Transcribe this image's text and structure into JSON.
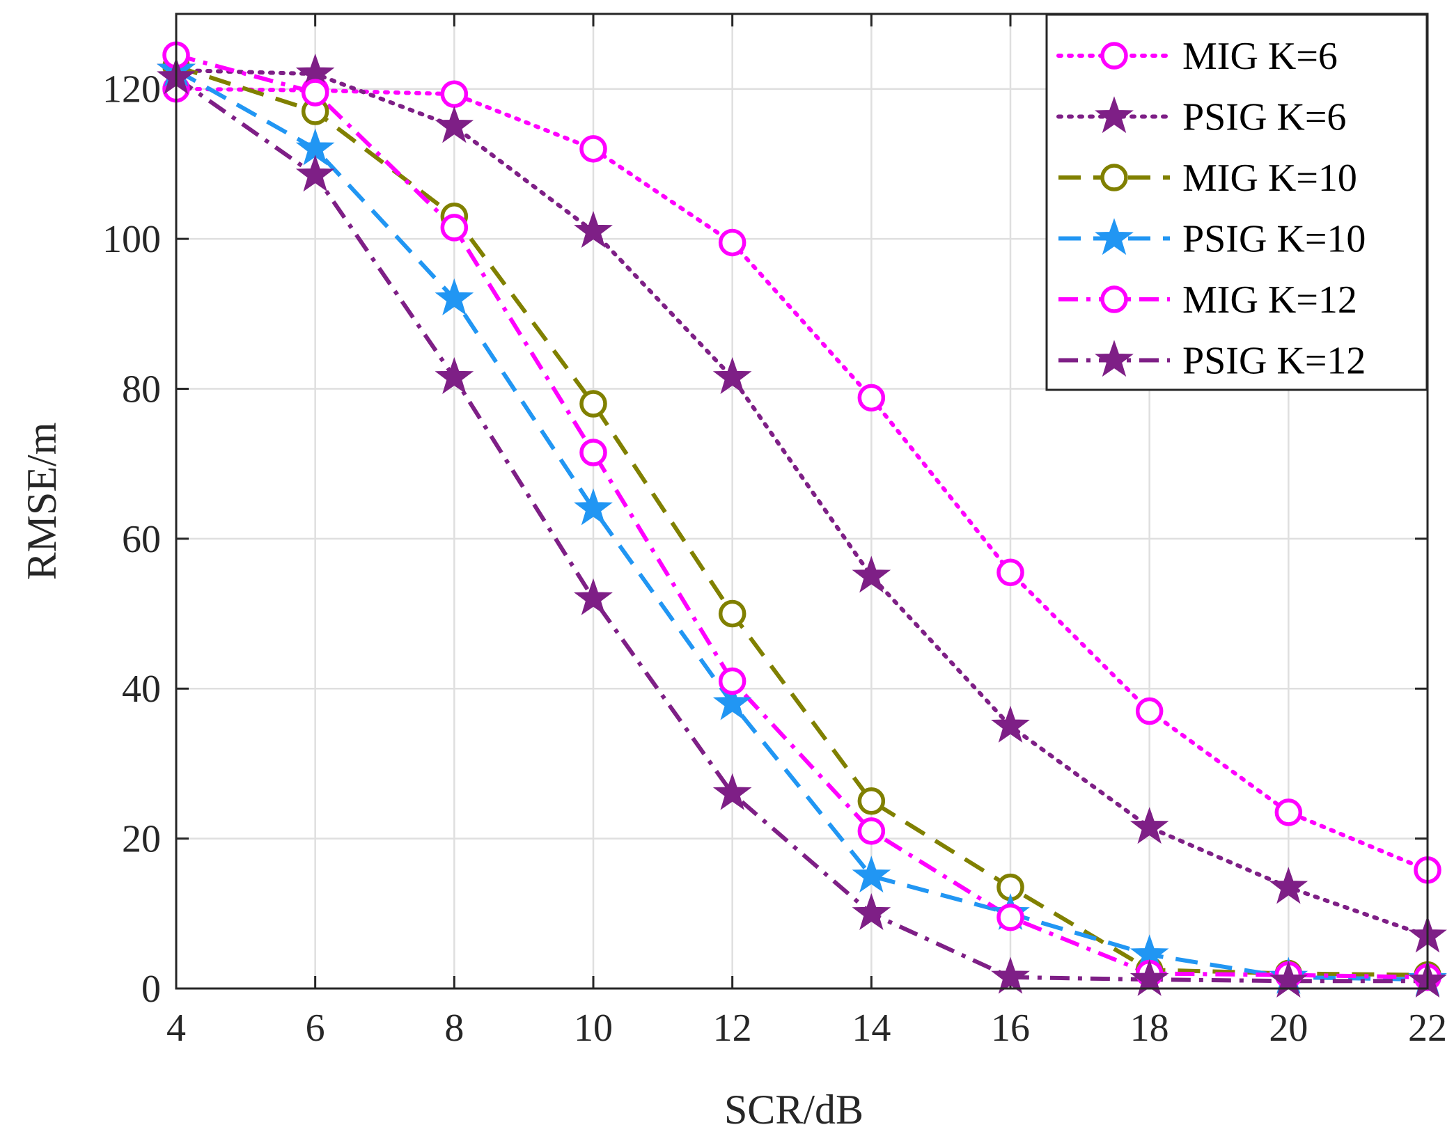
{
  "chart_data": {
    "type": "line",
    "title": "",
    "xlabel": "SCR/dB",
    "ylabel": "RMSE/m",
    "xlim": [
      4,
      22
    ],
    "ylim": [
      0,
      130
    ],
    "xticks": [
      4,
      6,
      8,
      10,
      12,
      14,
      16,
      18,
      20,
      22
    ],
    "yticks": [
      0,
      20,
      40,
      60,
      80,
      100,
      120
    ],
    "grid": true,
    "legend_position": "top-right",
    "x": [
      4,
      6,
      8,
      10,
      12,
      14,
      16,
      18,
      20,
      22
    ],
    "series": [
      {
        "name": "MIG  K=6",
        "color": "#ff00ff",
        "dash": "dotted",
        "marker": "circle",
        "values": [
          120.0,
          119.8,
          119.3,
          112.0,
          99.5,
          78.8,
          55.5,
          37.0,
          23.5,
          15.8
        ]
      },
      {
        "name": "PSIG K=6",
        "color": "#7e1f86",
        "dash": "dotted",
        "marker": "star",
        "values": [
          122.5,
          122.0,
          115.0,
          101.0,
          81.5,
          55.0,
          35.0,
          21.5,
          13.5,
          7.0
        ]
      },
      {
        "name": "MIG  K=10",
        "color": "#808000",
        "dash": "dashed",
        "marker": "circle",
        "values": [
          123.0,
          117.0,
          103.0,
          78.0,
          50.0,
          25.0,
          13.5,
          2.5,
          2.0,
          1.8
        ]
      },
      {
        "name": "PSIG K=10",
        "color": "#2196f3",
        "dash": "dashed",
        "marker": "star",
        "values": [
          122.5,
          112.0,
          92.0,
          64.0,
          38.0,
          15.0,
          10.0,
          4.5,
          1.5,
          1.2
        ]
      },
      {
        "name": "MIG  K=12",
        "color": "#ff00ff",
        "dash": "dashdot",
        "marker": "circle",
        "values": [
          124.5,
          119.5,
          101.5,
          71.5,
          41.0,
          21.0,
          9.5,
          2.0,
          1.8,
          1.5
        ]
      },
      {
        "name": "PSIG K=12",
        "color": "#7e1f86",
        "dash": "dashdot",
        "marker": "star",
        "values": [
          121.5,
          108.5,
          81.5,
          52.0,
          26.0,
          10.0,
          1.5,
          1.2,
          1.0,
          1.0
        ]
      }
    ]
  }
}
